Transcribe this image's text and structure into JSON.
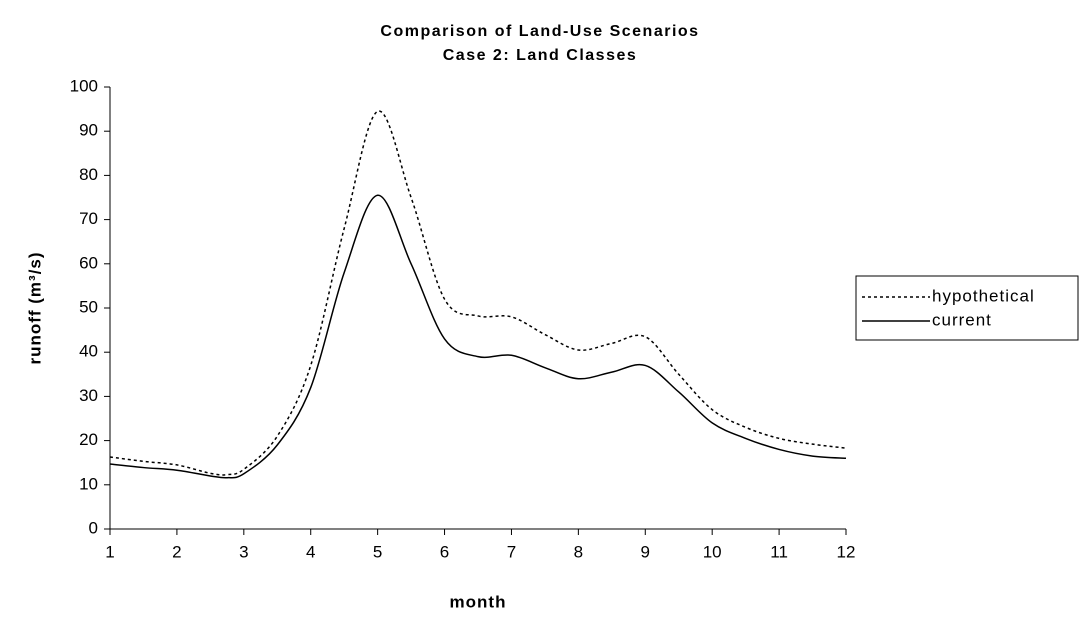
{
  "chart_data": {
    "type": "line",
    "title": "Comparison of Land-Use Scenarios",
    "subtitle": "Case 2:  Land Classes",
    "x_label": "month",
    "y_label": "runoff (m³/s)",
    "x": [
      1,
      1.5,
      2,
      2.5,
      2.75,
      3,
      3.5,
      4,
      4.5,
      5,
      5.5,
      6,
      6.5,
      7,
      7.5,
      8,
      8.5,
      9,
      9.5,
      10,
      10.5,
      11,
      11.5,
      12
    ],
    "series": [
      {
        "name": "hypothetical",
        "color": "#000000",
        "style": "dotted",
        "values": [
          16.3,
          15.3,
          14.5,
          12.6,
          12.3,
          13.5,
          21,
          37,
          68,
          94.5,
          75,
          52,
          48.2,
          48,
          44,
          40.5,
          42,
          43.5,
          35,
          27,
          23,
          20.5,
          19.2,
          18.3
        ]
      },
      {
        "name": "current",
        "color": "#000000",
        "style": "solid",
        "values": [
          14.7,
          13.9,
          13.3,
          12,
          11.6,
          12.5,
          19,
          32,
          58,
          75.5,
          60,
          43,
          39,
          39.3,
          36.5,
          34,
          35.5,
          37,
          31,
          24,
          20.5,
          18,
          16.5,
          16
        ]
      }
    ],
    "xlim": [
      1,
      12
    ],
    "xticks": [
      1,
      2,
      3,
      4,
      5,
      6,
      7,
      8,
      9,
      10,
      11,
      12
    ],
    "ylim": [
      0,
      100
    ],
    "yticks": [
      0,
      10,
      20,
      30,
      40,
      50,
      60,
      70,
      80,
      90,
      100
    ],
    "grid": false,
    "legend": "right"
  }
}
